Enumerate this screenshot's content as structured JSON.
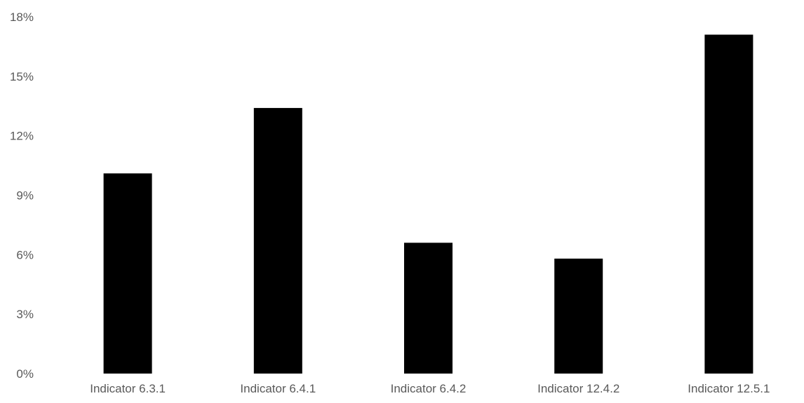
{
  "chart_data": {
    "type": "bar",
    "categories": [
      "Indicator 6.3.1",
      "Indicator 6.4.1",
      "Indicator 6.4.2",
      "Indicator 12.4.2",
      "Indicator 12.5.1"
    ],
    "values": [
      10.1,
      13.4,
      6.6,
      5.8,
      17.1
    ],
    "yticks": [
      "0%",
      "3%",
      "6%",
      "9%",
      "12%",
      "15%",
      "18%"
    ],
    "ylim": [
      0,
      18
    ],
    "bar_color": "#000000",
    "label_color": "#595959",
    "grid": false,
    "legend": "none"
  }
}
